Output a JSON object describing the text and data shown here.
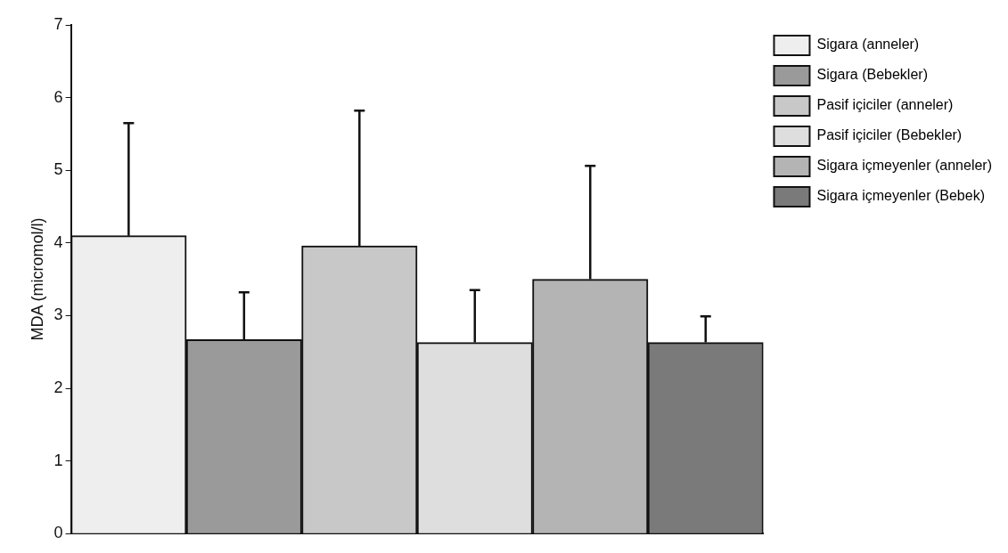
{
  "chart_data": {
    "type": "bar",
    "ylabel": "MDA (micromol/l)",
    "categories": [
      null,
      null,
      null,
      null,
      null,
      null
    ],
    "series": [
      {
        "name": "Sigara (anneler)",
        "color": "#eeeeee",
        "values": [
          4.1,
          null,
          null,
          null,
          null,
          null
        ],
        "errors": [
          1.55,
          null,
          null,
          null,
          null,
          null
        ]
      },
      {
        "name": "Sigara (Bebekler)",
        "color": "#9a9a9a",
        "values": [
          null,
          2.67,
          null,
          null,
          null,
          null
        ],
        "errors": [
          null,
          0.65,
          null,
          null,
          null,
          null
        ]
      },
      {
        "name": "Pasif içiciler (anneler)",
        "color": "#c8c8c8",
        "values": [
          null,
          null,
          3.96,
          null,
          null,
          null
        ],
        "errors": [
          null,
          null,
          1.86,
          null,
          null,
          null
        ]
      },
      {
        "name": "Pasif içiciler (Bebekler)",
        "color": "#dedede",
        "values": [
          null,
          null,
          null,
          2.63,
          null,
          null
        ],
        "errors": [
          null,
          null,
          null,
          0.72,
          null,
          null
        ]
      },
      {
        "name": "Sigara içmeyenler (anneler)",
        "color": "#b4b4b4",
        "values": [
          null,
          null,
          null,
          null,
          3.5,
          null
        ],
        "errors": [
          null,
          null,
          null,
          null,
          1.56,
          null
        ]
      },
      {
        "name": "Sigara içmeyenler (Bebek)",
        "color": "#7a7a7a",
        "values": [
          null,
          null,
          null,
          null,
          null,
          2.63
        ],
        "errors": [
          null,
          null,
          null,
          null,
          null,
          0.36
        ]
      }
    ],
    "ylim": [
      0,
      7
    ],
    "yticks": [
      0,
      1,
      2,
      3,
      4,
      5,
      6,
      7
    ],
    "grid": false,
    "legend": "top right"
  }
}
